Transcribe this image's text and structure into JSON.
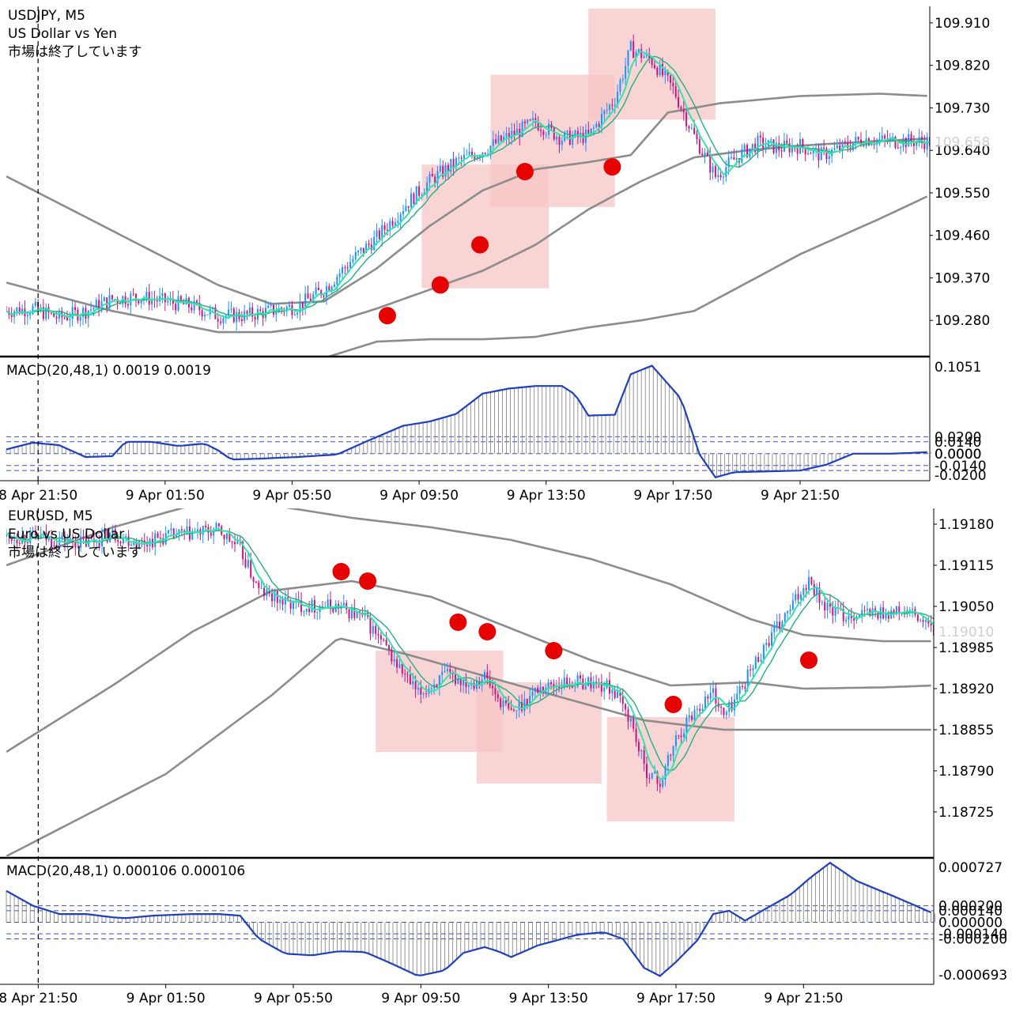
{
  "charts": [
    {
      "symbol": "USDJPY, M5",
      "description": "US Dollar vs Yen",
      "status": "市場は終了しています",
      "price_ticks": [
        "109.910",
        "109.820",
        "109.730",
        "109.640",
        "109.550",
        "109.460",
        "109.370",
        "109.280"
      ],
      "current_price": "109.658",
      "macd_label": "MACD(20,48,1) 0.0019 0.0019",
      "macd_ticks": [
        "0.1051",
        "0.0200",
        "0.0140",
        "0.0000",
        "0.0000",
        "-0.0140",
        "-0.0200"
      ],
      "time_ticks": [
        "8 Apr 21:50",
        "9 Apr 01:50",
        "9 Apr 05:50",
        "9 Apr 09:50",
        "9 Apr 13:50",
        "9 Apr 17:50",
        "9 Apr 21:50"
      ],
      "colors": {
        "bull": "#1e90ff",
        "bear": "#c71585",
        "ma_fast": "#2ee6a8",
        "ma_slow": "#22b07e",
        "band": "#8c8c8c",
        "macd_line": "#1f3fbf",
        "highlight": "#f7c5c5",
        "dot": "#e60000"
      }
    },
    {
      "symbol": "EURUSD, M5",
      "description": "Euro vs US Dollar",
      "status": "市場は終了しています",
      "price_ticks": [
        "1.19180",
        "1.19115",
        "1.19050",
        "1.18985",
        "1.18920",
        "1.18855",
        "1.18790",
        "1.18725"
      ],
      "current_price": "1.19010",
      "macd_label": "MACD(20,48,1) 0.000106 0.000106",
      "macd_ticks": [
        "0.000727",
        "0.000200",
        "0.000140",
        "0.000000",
        "-0.000140",
        "-0.000200",
        "-0.000693"
      ],
      "time_ticks": [
        "8 Apr 21:50",
        "9 Apr 01:50",
        "9 Apr 05:50",
        "9 Apr 09:50",
        "9 Apr 13:50",
        "9 Apr 17:50",
        "9 Apr 21:50"
      ],
      "colors": {
        "bull": "#1e90ff",
        "bear": "#c71585",
        "ma_fast": "#2ee6a8",
        "ma_slow": "#22b07e",
        "band": "#8c8c8c",
        "macd_line": "#1f3fbf",
        "highlight": "#f7c5c5",
        "dot": "#e60000"
      }
    }
  ],
  "chart_data": [
    {
      "type": "candlestick",
      "symbol": "USDJPY",
      "timeframe": "M5",
      "time_range": [
        "8 Apr 21:50",
        "9 Apr 23:55"
      ],
      "ylim": [
        109.205,
        109.945
      ],
      "close_path": [
        [
          0,
          109.3
        ],
        [
          10,
          109.305
        ],
        [
          20,
          109.285
        ],
        [
          30,
          109.3
        ],
        [
          40,
          109.325
        ],
        [
          50,
          109.33
        ],
        [
          60,
          109.32
        ],
        [
          70,
          109.31
        ],
        [
          80,
          109.29
        ],
        [
          90,
          109.29
        ],
        [
          100,
          109.3
        ],
        [
          110,
          109.31
        ],
        [
          120,
          109.345
        ],
        [
          130,
          109.405
        ],
        [
          140,
          109.455
        ],
        [
          150,
          109.52
        ],
        [
          160,
          109.575
        ],
        [
          170,
          109.615
        ],
        [
          180,
          109.64
        ],
        [
          190,
          109.67
        ],
        [
          200,
          109.7
        ],
        [
          210,
          109.665
        ],
        [
          220,
          109.67
        ],
        [
          230,
          109.75
        ],
        [
          236,
          109.855
        ],
        [
          244,
          109.83
        ],
        [
          252,
          109.77
        ],
        [
          260,
          109.67
        ],
        [
          268,
          109.585
        ],
        [
          276,
          109.625
        ],
        [
          284,
          109.655
        ],
        [
          292,
          109.645
        ],
        [
          300,
          109.65
        ],
        [
          308,
          109.63
        ],
        [
          316,
          109.645
        ],
        [
          324,
          109.665
        ],
        [
          332,
          109.66
        ],
        [
          340,
          109.66
        ],
        [
          349,
          109.658
        ]
      ],
      "bands": [
        [
          [
            0,
            109.585
          ],
          [
            40,
            109.47
          ],
          [
            80,
            109.355
          ],
          [
            100,
            109.315
          ],
          [
            120,
            109.32
          ],
          [
            140,
            109.39
          ],
          [
            160,
            109.48
          ],
          [
            180,
            109.555
          ],
          [
            200,
            109.6
          ],
          [
            220,
            109.615
          ],
          [
            236,
            109.63
          ],
          [
            250,
            109.72
          ],
          [
            270,
            109.74
          ],
          [
            300,
            109.755
          ],
          [
            330,
            109.76
          ],
          [
            349,
            109.755
          ]
        ],
        [
          [
            0,
            109.36
          ],
          [
            40,
            109.3
          ],
          [
            80,
            109.255
          ],
          [
            100,
            109.255
          ],
          [
            120,
            109.27
          ],
          [
            140,
            109.305
          ],
          [
            160,
            109.345
          ],
          [
            180,
            109.385
          ],
          [
            200,
            109.44
          ],
          [
            220,
            109.515
          ],
          [
            240,
            109.575
          ],
          [
            260,
            109.625
          ],
          [
            280,
            109.64
          ],
          [
            300,
            109.65
          ],
          [
            330,
            109.66
          ],
          [
            349,
            109.665
          ]
        ],
        [
          [
            0,
            109.085
          ],
          [
            60,
            109.135
          ],
          [
            100,
            109.19
          ],
          [
            120,
            109.2
          ],
          [
            140,
            109.235
          ],
          [
            160,
            109.24
          ],
          [
            180,
            109.24
          ],
          [
            200,
            109.245
          ],
          [
            220,
            109.265
          ],
          [
            240,
            109.28
          ],
          [
            260,
            109.3
          ],
          [
            280,
            109.36
          ],
          [
            300,
            109.42
          ],
          [
            330,
            109.495
          ],
          [
            349,
            109.545
          ]
        ]
      ],
      "highlight_zones": [
        {
          "t": [
            157,
            205
          ],
          "price": [
            109.348,
            109.61
          ]
        },
        {
          "t": [
            183,
            230
          ],
          "price": [
            109.52,
            109.8
          ]
        },
        {
          "t": [
            220,
            268
          ],
          "price": [
            109.705,
            109.94
          ]
        }
      ],
      "markers": [
        {
          "t": 144,
          "price": 109.29
        },
        {
          "t": 164,
          "price": 109.355
        },
        {
          "t": 179,
          "price": 109.44
        },
        {
          "t": 196,
          "price": 109.595
        },
        {
          "t": 229,
          "price": 109.605
        }
      ],
      "macd": {
        "ylim": [
          -0.032,
          0.112
        ],
        "levels": [
          0.02,
          0.014,
          0.0,
          -0.014,
          -0.02
        ],
        "path": [
          [
            0,
            0.005
          ],
          [
            10,
            0.013
          ],
          [
            20,
            0.01
          ],
          [
            30,
            -0.004
          ],
          [
            40,
            -0.003
          ],
          [
            45,
            0.014
          ],
          [
            55,
            0.014
          ],
          [
            65,
            0.009
          ],
          [
            75,
            0.012
          ],
          [
            80,
            0.004
          ],
          [
            85,
            -0.007
          ],
          [
            95,
            -0.006
          ],
          [
            110,
            -0.004
          ],
          [
            125,
            -0.001
          ],
          [
            135,
            0.013
          ],
          [
            150,
            0.033
          ],
          [
            160,
            0.038
          ],
          [
            170,
            0.047
          ],
          [
            180,
            0.071
          ],
          [
            190,
            0.077
          ],
          [
            200,
            0.08
          ],
          [
            210,
            0.08
          ],
          [
            215,
            0.07
          ],
          [
            220,
            0.045
          ],
          [
            230,
            0.046
          ],
          [
            236,
            0.094
          ],
          [
            244,
            0.104
          ],
          [
            255,
            0.065
          ],
          [
            262,
            -0.001
          ],
          [
            268,
            -0.028
          ],
          [
            275,
            -0.022
          ],
          [
            300,
            -0.02
          ],
          [
            310,
            -0.013
          ],
          [
            320,
            0.0
          ],
          [
            335,
            0.0
          ],
          [
            349,
            0.0019
          ]
        ]
      }
    },
    {
      "type": "candlestick",
      "symbol": "EURUSD",
      "timeframe": "M5",
      "time_range": [
        "8 Apr 21:50",
        "9 Apr 23:55"
      ],
      "ylim": [
        1.18655,
        1.19205
      ],
      "close_path": [
        [
          0,
          1.1916
        ],
        [
          10,
          1.1916
        ],
        [
          20,
          1.19155
        ],
        [
          30,
          1.1915
        ],
        [
          40,
          1.19165
        ],
        [
          50,
          1.1915
        ],
        [
          60,
          1.1916
        ],
        [
          70,
          1.19165
        ],
        [
          80,
          1.1917
        ],
        [
          88,
          1.1914
        ],
        [
          95,
          1.19075
        ],
        [
          105,
          1.19055
        ],
        [
          115,
          1.1905
        ],
        [
          125,
          1.1905
        ],
        [
          135,
          1.1903
        ],
        [
          145,
          1.1897
        ],
        [
          155,
          1.1891
        ],
        [
          165,
          1.1894
        ],
        [
          175,
          1.1893
        ],
        [
          180,
          1.1894
        ],
        [
          185,
          1.18905
        ],
        [
          190,
          1.1888
        ],
        [
          200,
          1.1892
        ],
        [
          210,
          1.1893
        ],
        [
          220,
          1.1893
        ],
        [
          228,
          1.1892
        ],
        [
          235,
          1.1887
        ],
        [
          240,
          1.18795
        ],
        [
          246,
          1.1877
        ],
        [
          252,
          1.1884
        ],
        [
          258,
          1.1888
        ],
        [
          266,
          1.18915
        ],
        [
          270,
          1.18875
        ],
        [
          275,
          1.1891
        ],
        [
          285,
          1.18985
        ],
        [
          295,
          1.19045
        ],
        [
          302,
          1.19095
        ],
        [
          308,
          1.1905
        ],
        [
          315,
          1.19035
        ],
        [
          325,
          1.1904
        ],
        [
          340,
          1.1904
        ],
        [
          349,
          1.1901
        ]
      ],
      "bands": [
        [
          [
            0,
            1.19115
          ],
          [
            40,
            1.19175
          ],
          [
            70,
            1.1921
          ],
          [
            100,
            1.1921
          ],
          [
            130,
            1.1919
          ],
          [
            160,
            1.19175
          ],
          [
            190,
            1.19155
          ],
          [
            220,
            1.19125
          ],
          [
            250,
            1.19085
          ],
          [
            280,
            1.1903
          ],
          [
            300,
            1.19005
          ],
          [
            330,
            1.18995
          ],
          [
            349,
            1.18995
          ]
        ],
        [
          [
            0,
            1.1882
          ],
          [
            40,
            1.18925
          ],
          [
            70,
            1.1901
          ],
          [
            100,
            1.19075
          ],
          [
            130,
            1.1909
          ],
          [
            160,
            1.19065
          ],
          [
            190,
            1.19015
          ],
          [
            220,
            1.18965
          ],
          [
            250,
            1.18925
          ],
          [
            280,
            1.1893
          ],
          [
            300,
            1.1892
          ],
          [
            330,
            1.18922
          ],
          [
            349,
            1.18925
          ]
        ],
        [
          [
            0,
            1.18655
          ],
          [
            30,
            1.1872
          ],
          [
            60,
            1.18785
          ],
          [
            100,
            1.1891
          ],
          [
            125,
            1.19
          ],
          [
            150,
            1.18975
          ],
          [
            180,
            1.1894
          ],
          [
            210,
            1.18905
          ],
          [
            240,
            1.1887
          ],
          [
            270,
            1.18855
          ],
          [
            300,
            1.18855
          ],
          [
            330,
            1.18855
          ],
          [
            349,
            1.18855
          ]
        ]
      ],
      "highlight_zones": [
        {
          "t": [
            139,
            187
          ],
          "price": [
            1.1882,
            1.1898
          ]
        },
        {
          "t": [
            177,
            224
          ],
          "price": [
            1.1877,
            1.1893
          ]
        },
        {
          "t": [
            226,
            274
          ],
          "price": [
            1.1871,
            1.18875
          ]
        }
      ],
      "markers": [
        {
          "t": 126,
          "price": 1.19105
        },
        {
          "t": 136,
          "price": 1.1909
        },
        {
          "t": 170,
          "price": 1.19025
        },
        {
          "t": 181,
          "price": 1.1901
        },
        {
          "t": 206,
          "price": 1.1898
        },
        {
          "t": 251,
          "price": 1.18895
        },
        {
          "t": 302,
          "price": 1.18965
        }
      ],
      "macd": {
        "ylim": [
          -0.00075,
          0.00076
        ],
        "levels": [
          0.0002,
          0.00014,
          0.0,
          -0.00014,
          -0.0002
        ],
        "path": [
          [
            0,
            0.00038
          ],
          [
            10,
            0.0002
          ],
          [
            20,
            0.0001
          ],
          [
            30,
            0.0001
          ],
          [
            40,
            6e-05
          ],
          [
            45,
            5e-05
          ],
          [
            55,
            8e-05
          ],
          [
            70,
            0.0001
          ],
          [
            80,
            0.0001
          ],
          [
            88,
            8e-05
          ],
          [
            95,
            -0.0002
          ],
          [
            105,
            -0.00038
          ],
          [
            115,
            -0.0004
          ],
          [
            125,
            -0.00035
          ],
          [
            135,
            -0.00036
          ],
          [
            145,
            -0.0005
          ],
          [
            155,
            -0.00065
          ],
          [
            165,
            -0.00058
          ],
          [
            172,
            -0.00037
          ],
          [
            180,
            -0.0003
          ],
          [
            185,
            -0.00035
          ],
          [
            190,
            -0.00042
          ],
          [
            200,
            -0.00028
          ],
          [
            215,
            -0.00015
          ],
          [
            225,
            -0.00012
          ],
          [
            232,
            -0.0002
          ],
          [
            240,
            -0.00055
          ],
          [
            246,
            -0.00065
          ],
          [
            252,
            -0.00048
          ],
          [
            260,
            -0.00022
          ],
          [
            266,
            0.0001
          ],
          [
            272,
            0.00014
          ],
          [
            278,
            2e-05
          ],
          [
            285,
            0.00015
          ],
          [
            295,
            0.00033
          ],
          [
            303,
            0.00055
          ],
          [
            310,
            0.00072
          ],
          [
            320,
            0.0005
          ],
          [
            335,
            0.0003
          ],
          [
            349,
            0.000106
          ]
        ]
      }
    }
  ]
}
